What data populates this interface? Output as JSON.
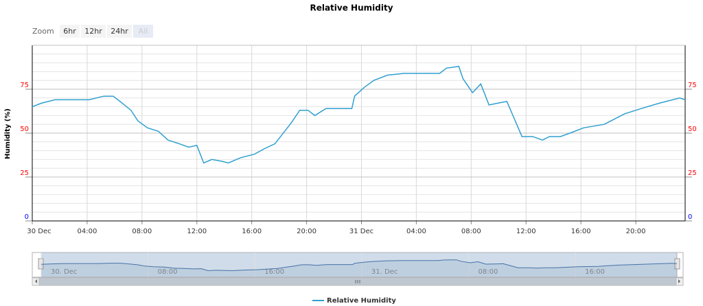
{
  "chart_data": {
    "type": "line",
    "title": "Relative Humidity",
    "ylabel": "Humidity (%)",
    "range_selector": {
      "label": "Zoom",
      "buttons": [
        "6hr",
        "12hr",
        "24hr",
        "All"
      ]
    },
    "x": [
      0,
      0.65,
      1.65,
      2.65,
      4.15,
      5.2,
      5.9,
      6.4,
      7.2,
      7.7,
      8.4,
      9.2,
      9.9,
      10.7,
      11.4,
      12,
      12.5,
      13.1,
      13.8,
      14.3,
      15.2,
      16.2,
      16.9,
      17.7,
      18.4,
      18.9,
      19.5,
      20.1,
      20.6,
      21.4,
      22.4,
      23.3,
      23.5,
      24.2,
      24.9,
      25.9,
      27.1,
      28.2,
      29.7,
      30.2,
      31.1,
      31.4,
      32.1,
      32.7,
      33.3,
      33.9,
      34.6,
      35.1,
      35.7,
      36.5,
      37.2,
      37.7,
      38.5,
      39.2,
      40.2,
      41.7,
      43.2,
      44.4,
      45.7,
      47.2,
      47.6
    ],
    "series": [
      {
        "name": "Relative Humidity",
        "color": "#2f9fd0",
        "values": [
          65,
          67,
          69,
          69,
          69,
          71,
          71,
          68,
          63,
          57,
          53,
          51,
          46,
          44,
          42,
          43,
          33,
          35,
          34,
          33,
          36,
          38,
          41,
          44,
          51,
          56,
          63,
          63,
          60,
          64,
          64,
          64,
          71,
          76,
          80,
          83,
          84,
          84,
          84,
          87,
          88,
          81,
          73,
          78,
          66,
          67,
          68,
          59,
          48,
          48,
          46,
          48,
          48,
          50,
          53,
          55,
          61,
          64,
          67,
          70,
          69
        ]
      }
    ],
    "xlim": [
      0,
      47.6
    ],
    "xticks": [
      {
        "value": 0,
        "label": "30 Dec"
      },
      {
        "value": 4,
        "label": "04:00"
      },
      {
        "value": 8,
        "label": "08:00"
      },
      {
        "value": 12,
        "label": "12:00"
      },
      {
        "value": 16,
        "label": "16:00"
      },
      {
        "value": 20,
        "label": "20:00"
      },
      {
        "value": 24,
        "label": "31 Dec"
      },
      {
        "value": 28,
        "label": "04:00"
      },
      {
        "value": 32,
        "label": "08:00"
      },
      {
        "value": 36,
        "label": "12:00"
      },
      {
        "value": 40,
        "label": "16:00"
      },
      {
        "value": 44,
        "label": "20:00"
      }
    ],
    "ylim": [
      0,
      100
    ],
    "yticks": [
      0,
      25,
      50,
      75
    ],
    "y2lim": [
      0,
      100
    ],
    "y2ticks": [
      0,
      25,
      50,
      75
    ],
    "ytick_label_colors": [
      "#0000ff",
      "#ff0000",
      "#ff0000",
      "#ff0000"
    ],
    "grid": true,
    "minor_grid_step": 5,
    "navigator": {
      "xticks": [
        {
          "value": 0,
          "label": "30. Dec"
        },
        {
          "value": 8,
          "label": "08:00"
        },
        {
          "value": 16,
          "label": "16:00"
        },
        {
          "value": 24,
          "label": "31. Dec"
        },
        {
          "value": 32,
          "label": "08:00"
        },
        {
          "value": 40,
          "label": "16:00"
        }
      ]
    },
    "legend": "bottom"
  }
}
